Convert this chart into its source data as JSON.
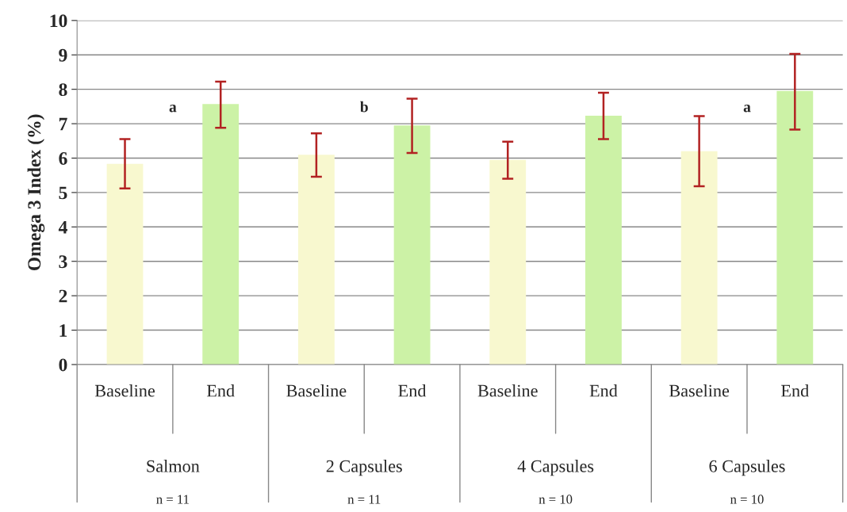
{
  "chart_data": {
    "type": "bar",
    "ylabel": "Omega 3 Index (%)",
    "categories": [
      "Baseline",
      "End",
      "Baseline",
      "End",
      "Baseline",
      "End",
      "Baseline",
      "End"
    ],
    "values": [
      5.83,
      7.57,
      6.1,
      6.95,
      5.95,
      7.23,
      6.2,
      7.95
    ],
    "colors": [
      "#ffffc8",
      "#ccff99",
      "#ffffc8",
      "#ccff99",
      "#ffffc8",
      "#ccff99",
      "#ffffc8",
      "#ccff99"
    ],
    "errors": [
      [
        5.12,
        6.55
      ],
      [
        6.88,
        8.22
      ],
      [
        5.46,
        6.72
      ],
      [
        6.15,
        7.73
      ],
      [
        5.4,
        6.48
      ],
      [
        6.55,
        7.9
      ],
      [
        5.18,
        7.22
      ],
      [
        6.83,
        9.03
      ]
    ],
    "ylim": [
      0,
      10
    ],
    "yticks": [
      0,
      1,
      2,
      3,
      4,
      5,
      6,
      7,
      8,
      9,
      10
    ],
    "grid": "y",
    "annotations": [
      "Salmon",
      "n = 11",
      "2 Capsules",
      "n = 11",
      "4 Capsules",
      "n = 10",
      "6 Capsules",
      "n = 10",
      "a",
      "b",
      "a"
    ]
  }
}
